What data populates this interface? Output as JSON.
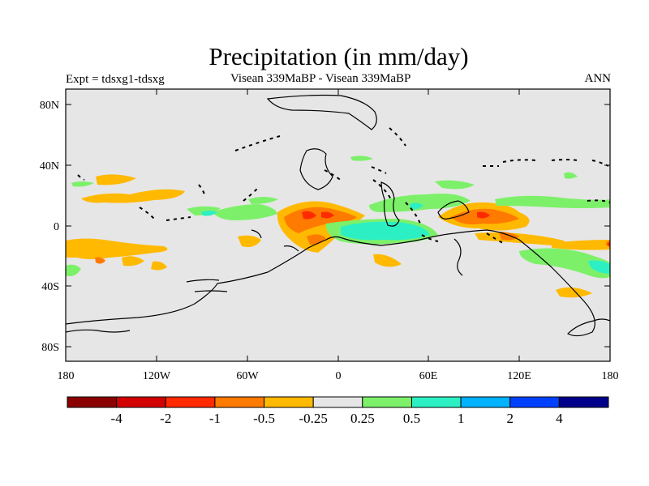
{
  "title": "Precipitation (in mm/day)",
  "left_label": "Expt = tdsxg1-tdsxg",
  "center_label": "Visean 339MaBP - Visean 339MaBP",
  "right_label": "ANN",
  "y_ticks": [
    "80N",
    "40N",
    "0",
    "40S",
    "80S"
  ],
  "x_ticks": [
    "180",
    "120W",
    "60W",
    "0",
    "60E",
    "120E",
    "180"
  ],
  "colorbar": {
    "colors": [
      "#8b0000",
      "#d20000",
      "#ff2a00",
      "#ff7a00",
      "#ffb900",
      "#e6e6e6",
      "#7df06a",
      "#2cf0c4",
      "#00b2ff",
      "#0041ff",
      "#00008b"
    ],
    "labels": [
      "-4",
      "-2",
      "-1",
      "-0.5",
      "-0.25",
      "0.25",
      "0.5",
      "1",
      "2",
      "4"
    ]
  },
  "colors": {
    "background": "#e6e6e6",
    "coast": "#000000"
  }
}
